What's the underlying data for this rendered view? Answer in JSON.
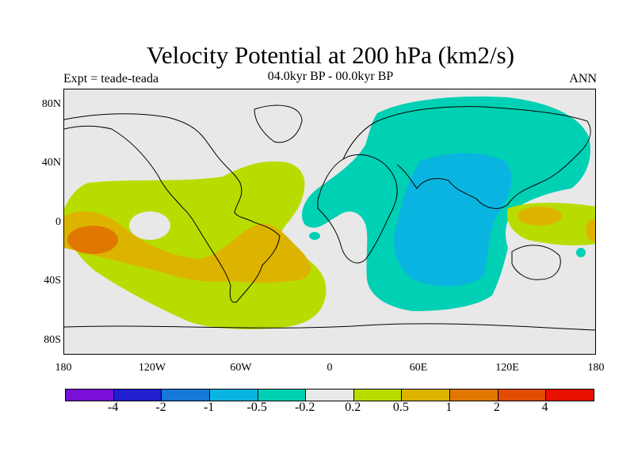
{
  "title": "Velocity Potential at 200 hPa (km2/s)",
  "subtitle_left": "Expt = teade-teada",
  "subtitle_center": "04.0kyr BP - 00.0kyr BP",
  "subtitle_right": "ANN",
  "y_ticks": [
    "80N",
    "40N",
    "0",
    "40S",
    "80S"
  ],
  "x_ticks": [
    "180",
    "120W",
    "60W",
    "0",
    "60E",
    "120E",
    "180"
  ],
  "colorbar": {
    "colors": [
      "#7a10d8",
      "#2020d0",
      "#1478d8",
      "#0ab4e0",
      "#00d0b4",
      "#e8e8e8",
      "#b8dc00",
      "#dcb400",
      "#e07800",
      "#e04c00",
      "#e81000"
    ],
    "labels": [
      "-4",
      "-2",
      "-1",
      "-0.5",
      "-0.2",
      "0.2",
      "0.5",
      "1",
      "2",
      "4"
    ]
  }
}
